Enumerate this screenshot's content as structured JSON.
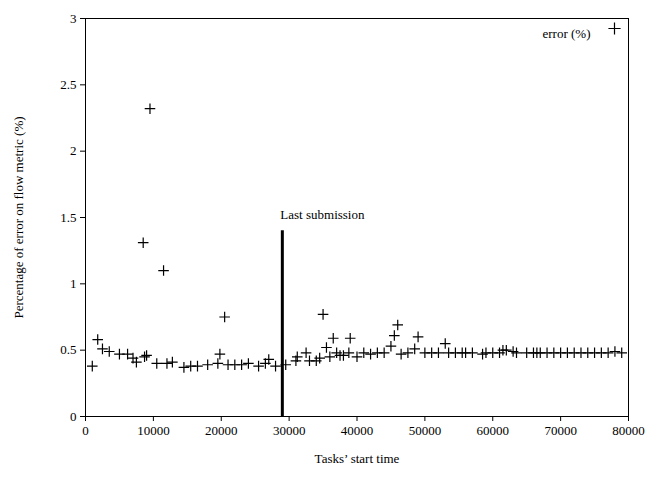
{
  "chart_data": {
    "type": "scatter",
    "x_label": "Tasks’ start time",
    "y_label": "Percentage of error on flow metric (%)",
    "xlim": [
      0,
      80000
    ],
    "ylim": [
      0,
      3
    ],
    "xticks": [
      0,
      10000,
      20000,
      30000,
      40000,
      50000,
      60000,
      70000,
      80000
    ],
    "yticks": [
      0,
      0.5,
      1,
      1.5,
      2,
      2.5,
      3
    ],
    "legend": "top-right",
    "annotations": [
      {
        "text": "Last submission",
        "x": 29000,
        "y": 1.4
      }
    ],
    "series": [
      {
        "name": "error (%)",
        "color": "#000000",
        "marker": "plus",
        "x": [
          1000,
          1800,
          2500,
          3500,
          5000,
          6200,
          7000,
          7500,
          8500,
          8700,
          9000,
          9500,
          10500,
          11500,
          12000,
          12800,
          14500,
          15500,
          16500,
          18000,
          19500,
          19800,
          20500,
          21000,
          22000,
          23000,
          24000,
          25500,
          26500,
          27000,
          28000,
          29500,
          31000,
          31200,
          32500,
          33000,
          34000,
          34500,
          35000,
          35500,
          36000,
          36500,
          37000,
          37500,
          38000,
          38800,
          39000,
          40000,
          41000,
          42000,
          43000,
          44000,
          45000,
          45500,
          46000,
          46500,
          47500,
          48500,
          49000,
          50000,
          51000,
          52000,
          53000,
          53500,
          54500,
          55500,
          56000,
          57000,
          58500,
          59000,
          60000,
          61000,
          61500,
          62000,
          63000,
          63500,
          65000,
          66000,
          66500,
          67000,
          68000,
          69000,
          70000,
          71000,
          72000,
          73000,
          74000,
          75000,
          76000,
          77000,
          78000,
          79000
        ],
        "values": [
          0.38,
          0.58,
          0.51,
          0.49,
          0.47,
          0.47,
          0.44,
          0.41,
          1.31,
          0.45,
          0.46,
          2.32,
          0.4,
          1.1,
          0.4,
          0.41,
          0.37,
          0.38,
          0.38,
          0.39,
          0.4,
          0.47,
          0.75,
          0.39,
          0.39,
          0.39,
          0.4,
          0.38,
          0.4,
          0.43,
          0.38,
          0.39,
          0.42,
          0.45,
          0.48,
          0.42,
          0.42,
          0.44,
          0.77,
          0.52,
          0.45,
          0.59,
          0.48,
          0.46,
          0.46,
          0.48,
          0.59,
          0.45,
          0.48,
          0.47,
          0.48,
          0.48,
          0.53,
          0.61,
          0.69,
          0.47,
          0.48,
          0.51,
          0.6,
          0.48,
          0.48,
          0.48,
          0.55,
          0.48,
          0.48,
          0.48,
          0.48,
          0.48,
          0.47,
          0.48,
          0.48,
          0.48,
          0.5,
          0.5,
          0.49,
          0.48,
          0.48,
          0.48,
          0.48,
          0.48,
          0.48,
          0.48,
          0.48,
          0.48,
          0.48,
          0.48,
          0.48,
          0.48,
          0.48,
          0.48,
          0.49,
          0.48
        ]
      }
    ]
  }
}
